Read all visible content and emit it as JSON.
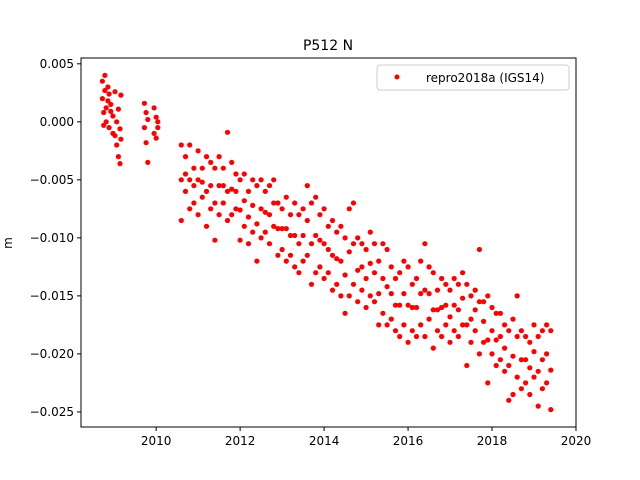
{
  "chart_data": {
    "type": "scatter",
    "title": "P512 N",
    "xlabel": "",
    "ylabel": "m",
    "xlim": [
      2008.21,
      2020.0
    ],
    "ylim": [
      -0.0263,
      0.0055
    ],
    "xticks": [
      2010,
      2012,
      2014,
      2016,
      2018,
      2020
    ],
    "xtick_labels": [
      "2010",
      "2012",
      "2014",
      "2016",
      "2018",
      "2020"
    ],
    "yticks": [
      0.005,
      0.0,
      -0.005,
      -0.01,
      -0.015,
      -0.02,
      -0.025
    ],
    "ytick_labels": [
      "0.005",
      "0.000",
      "−0.005",
      "−0.010",
      "−0.015",
      "−0.020",
      "−0.025"
    ],
    "grid": false,
    "legend": {
      "placement": "top-right",
      "entries": [
        "repro2018a (IGS14)"
      ]
    },
    "series": [
      {
        "name": "repro2018a (IGS14)",
        "color": "#ff0000",
        "marker": "circle",
        "samples_note": "each row: [year, y values at that epoch (m)]",
        "rows": [
          [
            2008.72,
            0.0035,
            0.002
          ],
          [
            2008.75,
            0.0008,
            -0.0003
          ],
          [
            2008.78,
            0.0027,
            0.004
          ],
          [
            2008.81,
            0.0012,
            0.0
          ],
          [
            2008.85,
            0.003,
            0.0018
          ],
          [
            2008.88,
            -0.0005,
            0.0024
          ],
          [
            2008.92,
            0.0009,
            0.0015
          ],
          [
            2008.97,
            -0.001,
            0.0005
          ],
          [
            2009.02,
            0.0026,
            -0.0012
          ],
          [
            2009.06,
            0.0,
            -0.002
          ],
          [
            2009.1,
            0.0011,
            -0.003
          ],
          [
            2009.14,
            -0.0006,
            -0.0036
          ],
          [
            2009.16,
            0.0023,
            -0.0015
          ],
          [
            2009.72,
            0.0016,
            -0.0005
          ],
          [
            2009.76,
            0.0008,
            -0.0018
          ],
          [
            2009.8,
            -0.0035,
            0.0002
          ],
          [
            2009.95,
            0.0012,
            -0.001
          ],
          [
            2010.0,
            0.0004,
            -0.0014
          ],
          [
            2010.04,
            -0.0005,
            0.0
          ],
          [
            2010.6,
            -0.002,
            -0.005,
            -0.0085
          ],
          [
            2010.7,
            -0.003,
            -0.0045,
            -0.006
          ],
          [
            2010.8,
            -0.002,
            -0.005,
            -0.0075
          ],
          [
            2010.9,
            -0.004,
            -0.0055,
            -0.007
          ],
          [
            2011.0,
            -0.0025,
            -0.005,
            -0.008
          ],
          [
            2011.1,
            -0.004,
            -0.0052,
            -0.0065
          ],
          [
            2011.2,
            -0.003,
            -0.006,
            -0.009
          ],
          [
            2011.3,
            -0.0035,
            -0.0055,
            -0.0075
          ],
          [
            2011.4,
            -0.004,
            -0.007,
            -0.0102
          ],
          [
            2011.5,
            -0.003,
            -0.0055,
            -0.008
          ],
          [
            2011.6,
            -0.004,
            -0.0055,
            -0.007
          ],
          [
            2011.7,
            -0.0009,
            -0.006,
            -0.0085
          ],
          [
            2011.8,
            -0.0035,
            -0.0058,
            -0.008
          ],
          [
            2011.9,
            -0.0045,
            -0.006,
            -0.0075
          ],
          [
            2012.0,
            -0.005,
            -0.0076,
            -0.0102
          ],
          [
            2012.1,
            -0.0045,
            -0.0068,
            -0.009
          ],
          [
            2012.2,
            -0.006,
            -0.0082,
            -0.0105
          ],
          [
            2012.3,
            -0.005,
            -0.0072,
            -0.0095
          ],
          [
            2012.4,
            -0.0055,
            -0.0088,
            -0.012
          ],
          [
            2012.5,
            -0.005,
            -0.0075,
            -0.01
          ],
          [
            2012.6,
            -0.006,
            -0.0078,
            -0.0095
          ],
          [
            2012.7,
            -0.0055,
            -0.008,
            -0.0105
          ],
          [
            2012.8,
            -0.005,
            -0.007,
            -0.009
          ],
          [
            2012.9,
            -0.007,
            -0.0092,
            -0.0115
          ],
          [
            2013.0,
            -0.0075,
            -0.0092,
            -0.011
          ],
          [
            2013.1,
            -0.0065,
            -0.0092,
            -0.012
          ],
          [
            2013.2,
            -0.008,
            -0.0098,
            -0.0115
          ],
          [
            2013.3,
            -0.007,
            -0.0098,
            -0.0125
          ],
          [
            2013.4,
            -0.008,
            -0.0105,
            -0.013
          ],
          [
            2013.5,
            -0.0075,
            -0.0098,
            -0.012
          ],
          [
            2013.6,
            -0.0055,
            -0.0085,
            -0.0115
          ],
          [
            2013.7,
            -0.007,
            -0.0105,
            -0.014
          ],
          [
            2013.8,
            -0.0065,
            -0.0098,
            -0.013
          ],
          [
            2013.9,
            -0.008,
            -0.0102,
            -0.0125
          ],
          [
            2014.0,
            -0.0075,
            -0.0105,
            -0.0135
          ],
          [
            2014.1,
            -0.009,
            -0.011,
            -0.013
          ],
          [
            2014.2,
            -0.0085,
            -0.0115,
            -0.0145
          ],
          [
            2014.3,
            -0.0095,
            -0.0118,
            -0.014
          ],
          [
            2014.4,
            -0.009,
            -0.012,
            -0.015
          ],
          [
            2014.5,
            -0.01,
            -0.0132,
            -0.0165
          ],
          [
            2014.6,
            -0.0075,
            -0.0112,
            -0.015
          ],
          [
            2014.7,
            -0.007,
            -0.0105,
            -0.014
          ],
          [
            2014.8,
            -0.01,
            -0.0128,
            -0.0155
          ],
          [
            2014.9,
            -0.0105,
            -0.0125,
            -0.0145
          ],
          [
            2015.0,
            -0.011,
            -0.0135,
            -0.016
          ],
          [
            2015.1,
            -0.0095,
            -0.0122,
            -0.015
          ],
          [
            2015.2,
            -0.0105,
            -0.013,
            -0.0155
          ],
          [
            2015.3,
            -0.012,
            -0.0148,
            -0.0175
          ],
          [
            2015.4,
            -0.0105,
            -0.0135,
            -0.0165
          ],
          [
            2015.5,
            -0.011,
            -0.0142,
            -0.0175
          ],
          [
            2015.6,
            -0.0125,
            -0.0148,
            -0.017
          ],
          [
            2015.7,
            -0.0135,
            -0.0158,
            -0.018
          ],
          [
            2015.8,
            -0.013,
            -0.0158,
            -0.0185
          ],
          [
            2015.9,
            -0.012,
            -0.0148,
            -0.0175
          ],
          [
            2016.0,
            -0.0125,
            -0.0158,
            -0.019
          ],
          [
            2016.1,
            -0.014,
            -0.016,
            -0.018
          ],
          [
            2016.2,
            -0.0135,
            -0.016,
            -0.0185
          ],
          [
            2016.3,
            -0.012,
            -0.0148,
            -0.0175
          ],
          [
            2016.4,
            -0.0105,
            -0.0145,
            -0.0185
          ],
          [
            2016.5,
            -0.0125,
            -0.0148,
            -0.017
          ],
          [
            2016.6,
            -0.013,
            -0.0162,
            -0.0195
          ],
          [
            2016.7,
            -0.0145,
            -0.0162,
            -0.018
          ],
          [
            2016.8,
            -0.0135,
            -0.016,
            -0.0185
          ],
          [
            2016.9,
            -0.014,
            -0.0158,
            -0.0175
          ],
          [
            2017.0,
            -0.0145,
            -0.0168,
            -0.019
          ],
          [
            2017.1,
            -0.0135,
            -0.0158,
            -0.018
          ],
          [
            2017.2,
            -0.014,
            -0.0162,
            -0.0185
          ],
          [
            2017.3,
            -0.013,
            -0.0152,
            -0.0175
          ],
          [
            2017.4,
            -0.014,
            -0.0175,
            -0.021
          ],
          [
            2017.5,
            -0.015,
            -0.017,
            -0.019
          ],
          [
            2017.6,
            -0.0145,
            -0.0162,
            -0.018
          ],
          [
            2017.7,
            -0.011,
            -0.0155,
            -0.02
          ],
          [
            2017.8,
            -0.0155,
            -0.0172,
            -0.019
          ],
          [
            2017.9,
            -0.015,
            -0.0188,
            -0.0225
          ],
          [
            2018.0,
            -0.016,
            -0.018,
            -0.02
          ],
          [
            2018.1,
            -0.0165,
            -0.0188,
            -0.021
          ],
          [
            2018.2,
            -0.0165,
            -0.0185,
            -0.0205
          ],
          [
            2018.3,
            -0.0175,
            -0.0195,
            -0.0215
          ],
          [
            2018.4,
            -0.018,
            -0.021,
            -0.024
          ],
          [
            2018.5,
            -0.017,
            -0.0202,
            -0.0235
          ],
          [
            2018.6,
            -0.015,
            -0.0185,
            -0.022
          ],
          [
            2018.7,
            -0.018,
            -0.0205,
            -0.023
          ],
          [
            2018.8,
            -0.0185,
            -0.0205,
            -0.0225
          ],
          [
            2018.9,
            -0.019,
            -0.0212,
            -0.0235
          ],
          [
            2019.0,
            -0.0175,
            -0.0198,
            -0.022
          ],
          [
            2019.1,
            -0.0185,
            -0.0215,
            -0.0245
          ],
          [
            2019.2,
            -0.018,
            -0.0205,
            -0.023
          ],
          [
            2019.3,
            -0.0175,
            -0.02,
            -0.0225
          ],
          [
            2019.4,
            -0.018,
            -0.0214,
            -0.0248
          ]
        ]
      }
    ]
  }
}
